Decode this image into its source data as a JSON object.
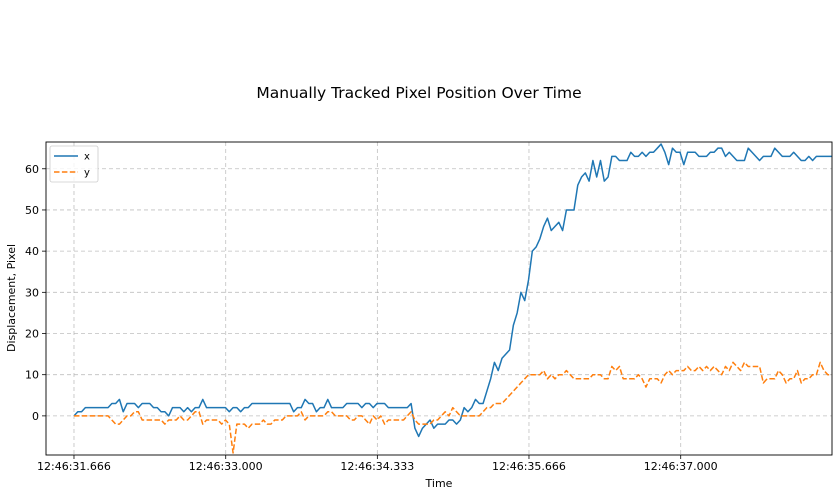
{
  "chart_data": {
    "type": "line",
    "title": "Manually Tracked Pixel Position Over Time",
    "xlabel": "Time",
    "ylabel": "Displacement, Pixel",
    "x_unit": "seconds",
    "xlim": [
      31.42,
      38.33
    ],
    "ylim": [
      -9.5,
      66.5
    ],
    "x_ticks": [
      {
        "value": 31.666,
        "label": "12:46:31.666"
      },
      {
        "value": 33.0,
        "label": "12:46:33.000"
      },
      {
        "value": 34.333,
        "label": "12:46:34.333"
      },
      {
        "value": 35.666,
        "label": "12:46:35.666"
      },
      {
        "value": 37.0,
        "label": "12:46:37.000"
      }
    ],
    "y_ticks": [
      0,
      10,
      20,
      30,
      40,
      50,
      60
    ],
    "grid": true,
    "legend": "top-left",
    "x_start": 31.666,
    "x_step": 0.0333,
    "series": [
      {
        "name": "x",
        "color": "#1f77b4",
        "style": "solid",
        "values": [
          0,
          1,
          1,
          2,
          2,
          2,
          2,
          2,
          2,
          2,
          3,
          3,
          4,
          1,
          3,
          3,
          3,
          2,
          3,
          3,
          3,
          2,
          2,
          1,
          1,
          0,
          2,
          2,
          2,
          1,
          2,
          1,
          2,
          2,
          4,
          2,
          2,
          2,
          2,
          2,
          2,
          1,
          2,
          2,
          1,
          2,
          2,
          3,
          3,
          3,
          3,
          3,
          3,
          3,
          3,
          3,
          3,
          3,
          1,
          2,
          2,
          4,
          3,
          3,
          1,
          2,
          2,
          4,
          2,
          2,
          2,
          2,
          3,
          3,
          3,
          3,
          2,
          3,
          3,
          2,
          3,
          3,
          3,
          2,
          2,
          2,
          2,
          2,
          2,
          3,
          -3,
          -5,
          -3,
          -2,
          -1,
          -3,
          -2,
          -2,
          -2,
          -1,
          -1,
          -2,
          -1,
          2,
          1,
          2,
          4,
          3,
          3,
          6,
          9,
          13,
          11,
          14,
          15,
          16,
          22,
          25,
          30,
          28,
          33,
          40,
          41,
          43,
          46,
          48,
          45,
          46,
          47,
          45,
          50,
          50,
          50,
          56,
          58,
          59,
          57,
          62,
          58,
          62,
          57,
          58,
          63,
          63,
          62,
          62,
          62,
          64,
          63,
          63,
          64,
          63,
          64,
          64,
          65,
          66,
          64,
          61,
          65,
          64,
          64,
          61,
          64,
          64,
          64,
          63,
          63,
          63,
          64,
          64,
          65,
          65,
          63,
          64,
          63,
          62,
          62,
          62,
          65,
          64,
          63,
          62,
          63,
          63,
          63,
          65,
          64,
          63,
          63,
          63,
          64,
          63,
          62,
          62,
          63,
          62,
          63,
          63,
          63,
          63,
          63
        ]
      },
      {
        "name": "y",
        "color": "#ff7f0e",
        "style": "dashed",
        "values": [
          0,
          0,
          0,
          0,
          0,
          0,
          0,
          0,
          0,
          0,
          -1,
          -2,
          -2,
          -1,
          0,
          0,
          1,
          1,
          -1,
          -1,
          -1,
          -1,
          -1,
          -1,
          -2,
          -1,
          -1,
          -1,
          0,
          -1,
          -1,
          0,
          1,
          1,
          -2,
          -1,
          -1,
          -1,
          -1,
          -2,
          -1,
          -2,
          -9,
          -2,
          -2,
          -2,
          -3,
          -2,
          -2,
          -2,
          -1,
          -2,
          -2,
          -1,
          -1,
          -1,
          0,
          0,
          0,
          0,
          1,
          -1,
          0,
          0,
          0,
          0,
          0,
          1,
          1,
          0,
          0,
          0,
          0,
          -1,
          -1,
          0,
          0,
          -1,
          -2,
          0,
          -1,
          0,
          -2,
          -1,
          -1,
          -1,
          -1,
          -1,
          0,
          1,
          -1,
          -2,
          -2,
          -2,
          -2,
          -1,
          -1,
          0,
          1,
          0,
          2,
          1,
          0,
          0,
          0,
          0,
          0,
          0,
          1,
          2,
          2,
          3,
          3,
          3,
          4,
          5,
          6,
          7,
          8,
          9,
          10,
          10,
          10,
          10,
          11,
          9,
          10,
          9,
          10,
          10,
          11,
          10,
          9,
          9,
          9,
          9,
          9,
          10,
          10,
          10,
          9,
          9,
          12,
          11,
          12,
          9,
          9,
          9,
          9,
          10,
          9,
          7,
          9,
          9,
          9,
          8,
          10,
          11,
          10,
          11,
          11,
          11,
          12,
          11,
          11,
          12,
          11,
          12,
          11,
          12,
          11,
          10,
          12,
          11,
          13,
          12,
          11,
          13,
          12,
          12,
          12,
          12,
          8,
          9,
          9,
          9,
          11,
          10,
          8,
          9,
          9,
          11,
          8,
          9,
          9,
          10,
          10,
          13,
          11,
          10,
          10,
          10,
          11,
          12,
          12,
          10,
          9
        ]
      }
    ]
  }
}
